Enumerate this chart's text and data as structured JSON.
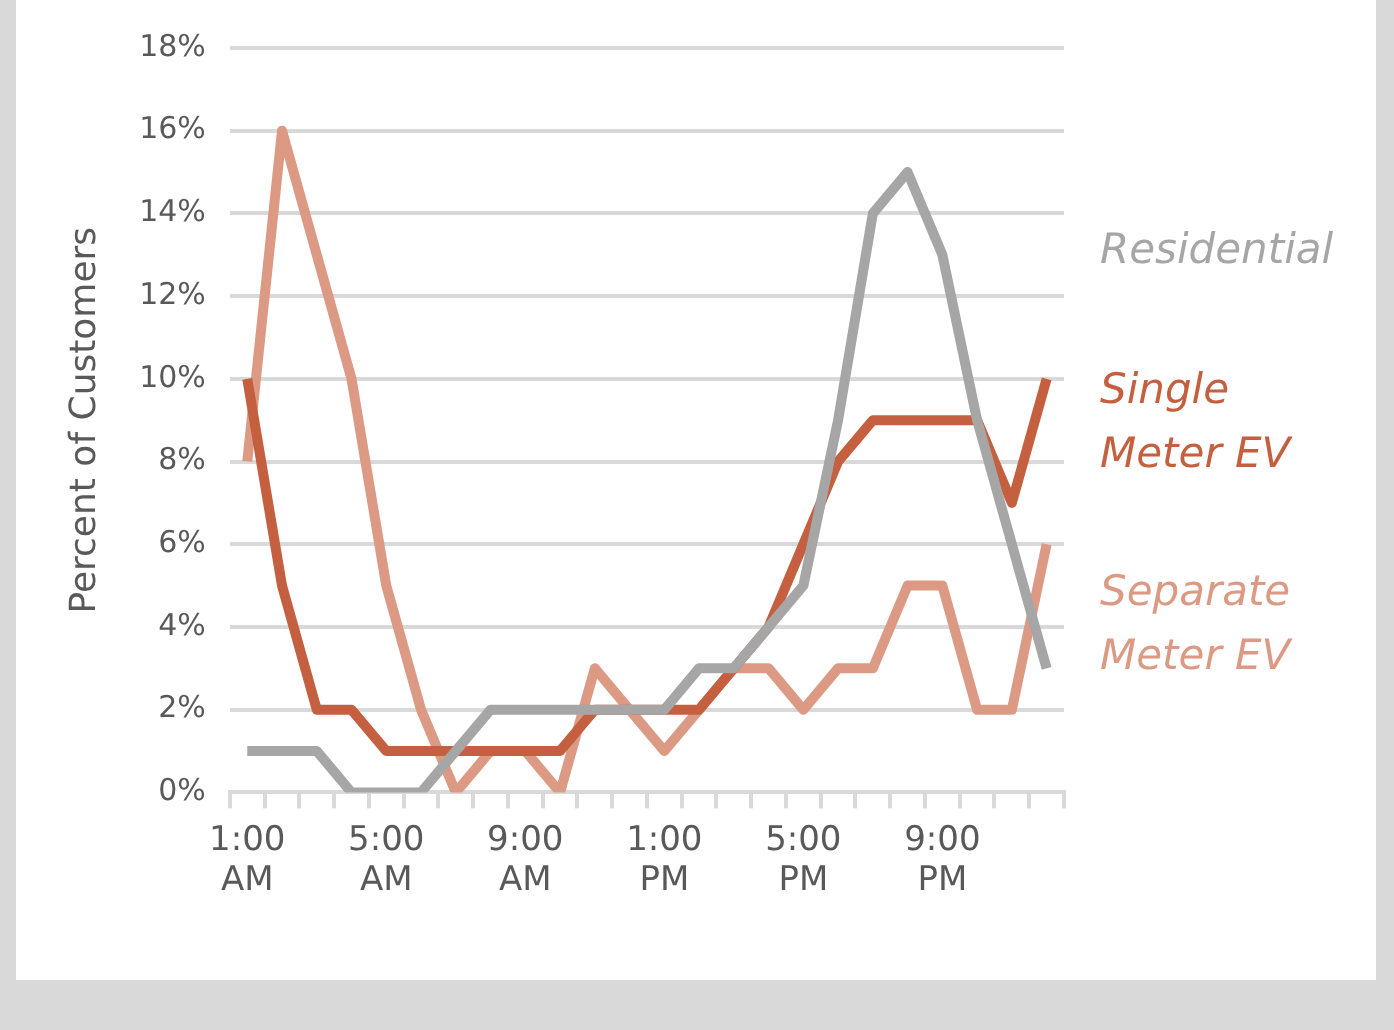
{
  "chart_data": {
    "type": "line",
    "ylabel": "Percent of Customers",
    "categories": [
      "1:00 AM",
      null,
      null,
      null,
      "5:00 AM",
      null,
      null,
      null,
      "9:00 AM",
      null,
      null,
      null,
      "1:00 PM",
      null,
      null,
      null,
      "5:00 PM",
      null,
      null,
      null,
      "9:00 PM",
      null,
      null,
      null
    ],
    "series": [
      {
        "name": "Residential",
        "color": "#a6a6a6",
        "values": [
          1,
          1,
          1,
          0,
          0,
          0,
          1,
          2,
          2,
          2,
          2,
          2,
          2,
          3,
          3,
          4,
          5,
          9,
          14,
          15,
          13,
          9,
          6,
          3
        ]
      },
      {
        "name": "Single Meter EV",
        "color": "#c4603f",
        "values": [
          10,
          5,
          2,
          2,
          1,
          1,
          1,
          1,
          1,
          1,
          2,
          2,
          2,
          2,
          3,
          4,
          6,
          8,
          9,
          9,
          9,
          9,
          7,
          10
        ]
      },
      {
        "name": "Separate Meter EV",
        "color": "#dc9a85",
        "values": [
          8,
          16,
          13,
          10,
          5,
          2,
          0,
          1,
          1,
          0,
          3,
          2,
          1,
          2,
          3,
          3,
          2,
          3,
          3,
          5,
          5,
          2,
          2,
          6
        ]
      }
    ],
    "ylim": [
      0,
      18
    ],
    "yticks": [
      {
        "value": 0,
        "label": "0%"
      },
      {
        "value": 2,
        "label": "2%"
      },
      {
        "value": 4,
        "label": "4%"
      },
      {
        "value": 6,
        "label": "6%"
      },
      {
        "value": 8,
        "label": "8%"
      },
      {
        "value": 10,
        "label": "10%"
      },
      {
        "value": 12,
        "label": "12%"
      },
      {
        "value": 14,
        "label": "14%"
      },
      {
        "value": 16,
        "label": "16%"
      },
      {
        "value": 18,
        "label": "18%"
      }
    ],
    "grid": "y",
    "legend": "right",
    "marker": "none",
    "line_style": "solid"
  }
}
